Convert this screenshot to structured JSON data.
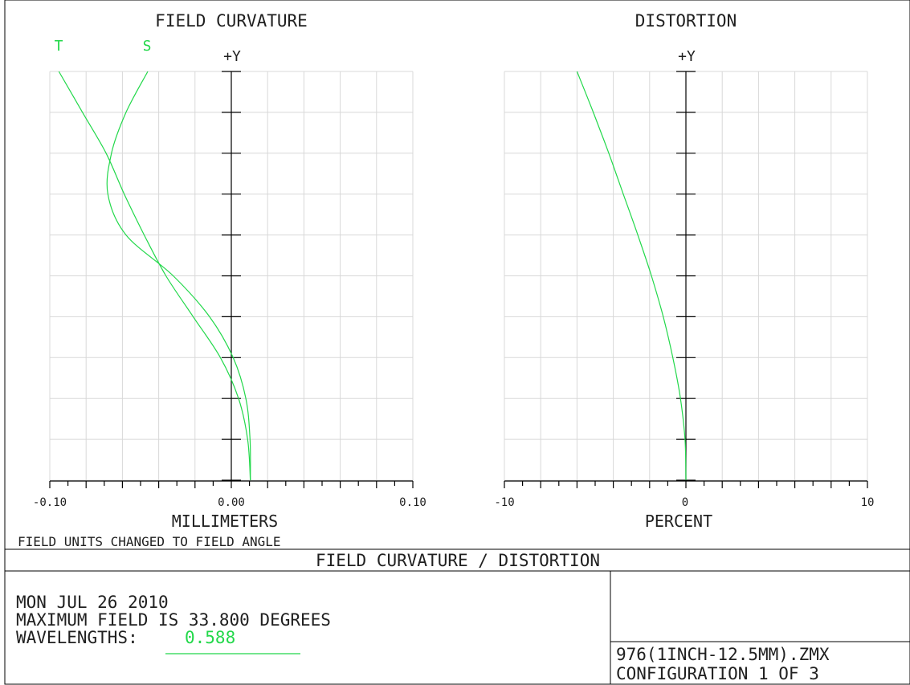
{
  "colors": {
    "curve": "#22d84a",
    "grid": "#d8d8d8",
    "axis": "#000000",
    "text": "#202020"
  },
  "chart_data": [
    {
      "type": "line",
      "title": "FIELD CURVATURE",
      "xlabel": "MILLIMETERS",
      "ylabel": "+Y",
      "xlim": [
        -0.1,
        0.1
      ],
      "ylim": [
        0,
        33.8
      ],
      "x_tick_labels": [
        "-0.10",
        "0.00",
        "0.10"
      ],
      "grid": true,
      "series": [
        {
          "name": "T",
          "points": [
            [
              0.0105,
              0
            ],
            [
              0.0103,
              3.38
            ],
            [
              0.008,
              6.76
            ],
            [
              0.001,
              10.14
            ],
            [
              -0.012,
              13.52
            ],
            [
              -0.032,
              16.9
            ],
            [
              -0.058,
              20.28
            ],
            [
              -0.068,
              23.66
            ],
            [
              -0.066,
              27.04
            ],
            [
              -0.058,
              30.42
            ],
            [
              -0.046,
              33.8
            ]
          ]
        },
        {
          "name": "S",
          "points": [
            [
              0.0105,
              0
            ],
            [
              0.009,
              3.38
            ],
            [
              0.004,
              6.76
            ],
            [
              -0.006,
              10.14
            ],
            [
              -0.021,
              13.52
            ],
            [
              -0.036,
              16.9
            ],
            [
              -0.048,
              20.28
            ],
            [
              -0.059,
              23.66
            ],
            [
              -0.069,
              27.04
            ],
            [
              -0.082,
              30.42
            ],
            [
              -0.095,
              33.8
            ]
          ]
        }
      ],
      "legend_labels": [
        "T",
        "S"
      ]
    },
    {
      "type": "line",
      "title": "DISTORTION",
      "xlabel": "PERCENT",
      "ylabel": "+Y",
      "xlim": [
        -10,
        10
      ],
      "ylim": [
        0,
        33.8
      ],
      "x_tick_labels": [
        "-10",
        "0",
        "10"
      ],
      "grid": true,
      "series": [
        {
          "points": [
            [
              0,
              0
            ],
            [
              -0.05,
              3.38
            ],
            [
              -0.3,
              6.76
            ],
            [
              -0.72,
              10.14
            ],
            [
              -1.25,
              13.52
            ],
            [
              -1.9,
              16.9
            ],
            [
              -2.65,
              20.28
            ],
            [
              -3.45,
              23.66
            ],
            [
              -4.25,
              27.04
            ],
            [
              -5.1,
              30.42
            ],
            [
              -6.0,
              33.8
            ]
          ]
        }
      ]
    }
  ],
  "note": "FIELD UNITS CHANGED TO FIELD ANGLE",
  "footer": {
    "title": "FIELD CURVATURE / DISTORTION",
    "date": "MON JUL 26 2010",
    "max_field": "MAXIMUM FIELD IS 33.800 DEGREES",
    "wavelengths_label": "WAVELENGTHS:",
    "wavelength_value": "0.588",
    "file": "976(1INCH-12.5MM).ZMX",
    "configuration": "CONFIGURATION 1 OF 3"
  }
}
